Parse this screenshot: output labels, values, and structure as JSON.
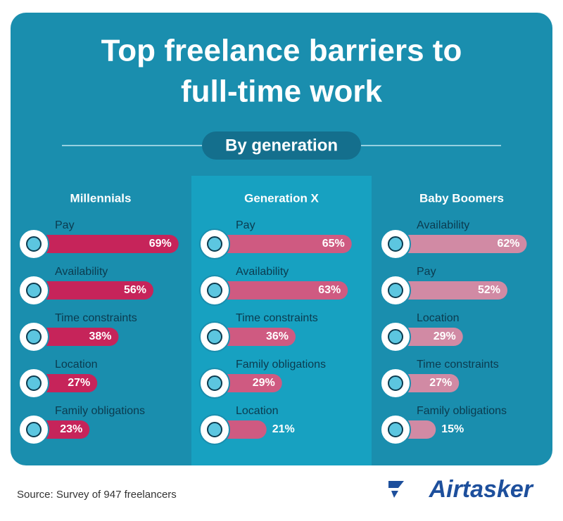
{
  "header": {
    "title": [
      "Top freelance barriers to",
      "full-time work"
    ],
    "subtitle": "By generation"
  },
  "footer": {
    "source": "Source: Survey of 947 freelancers",
    "logo": "Airtasker"
  },
  "chart_data": [
    {
      "type": "bar",
      "orientation": "horizontal",
      "title": "Millennials",
      "color": "#c6245a",
      "categories": [
        "Pay",
        "Availability",
        "Time constraints",
        "Location",
        "Family obligations"
      ],
      "values": [
        69,
        56,
        38,
        27,
        23
      ],
      "value_labels": [
        "69%",
        "56%",
        "38%",
        "27%",
        "23%"
      ]
    },
    {
      "type": "bar",
      "orientation": "horizontal",
      "title": "Generation X",
      "color": "#cf5a81",
      "categories": [
        "Pay",
        "Availability",
        "Time constraints",
        "Family obligations",
        "Location"
      ],
      "values": [
        65,
        63,
        36,
        29,
        21
      ],
      "value_labels": [
        "65%",
        "63%",
        "36%",
        "29%",
        "21%"
      ]
    },
    {
      "type": "bar",
      "orientation": "horizontal",
      "title": "Baby Boomers",
      "color": "#d18aa4",
      "categories": [
        "Availability",
        "Pay",
        "Location",
        "Time constraints",
        "Family obligations"
      ],
      "values": [
        62,
        52,
        29,
        27,
        15
      ],
      "value_labels": [
        "62%",
        "52%",
        "29%",
        "27%",
        "15%"
      ]
    }
  ]
}
